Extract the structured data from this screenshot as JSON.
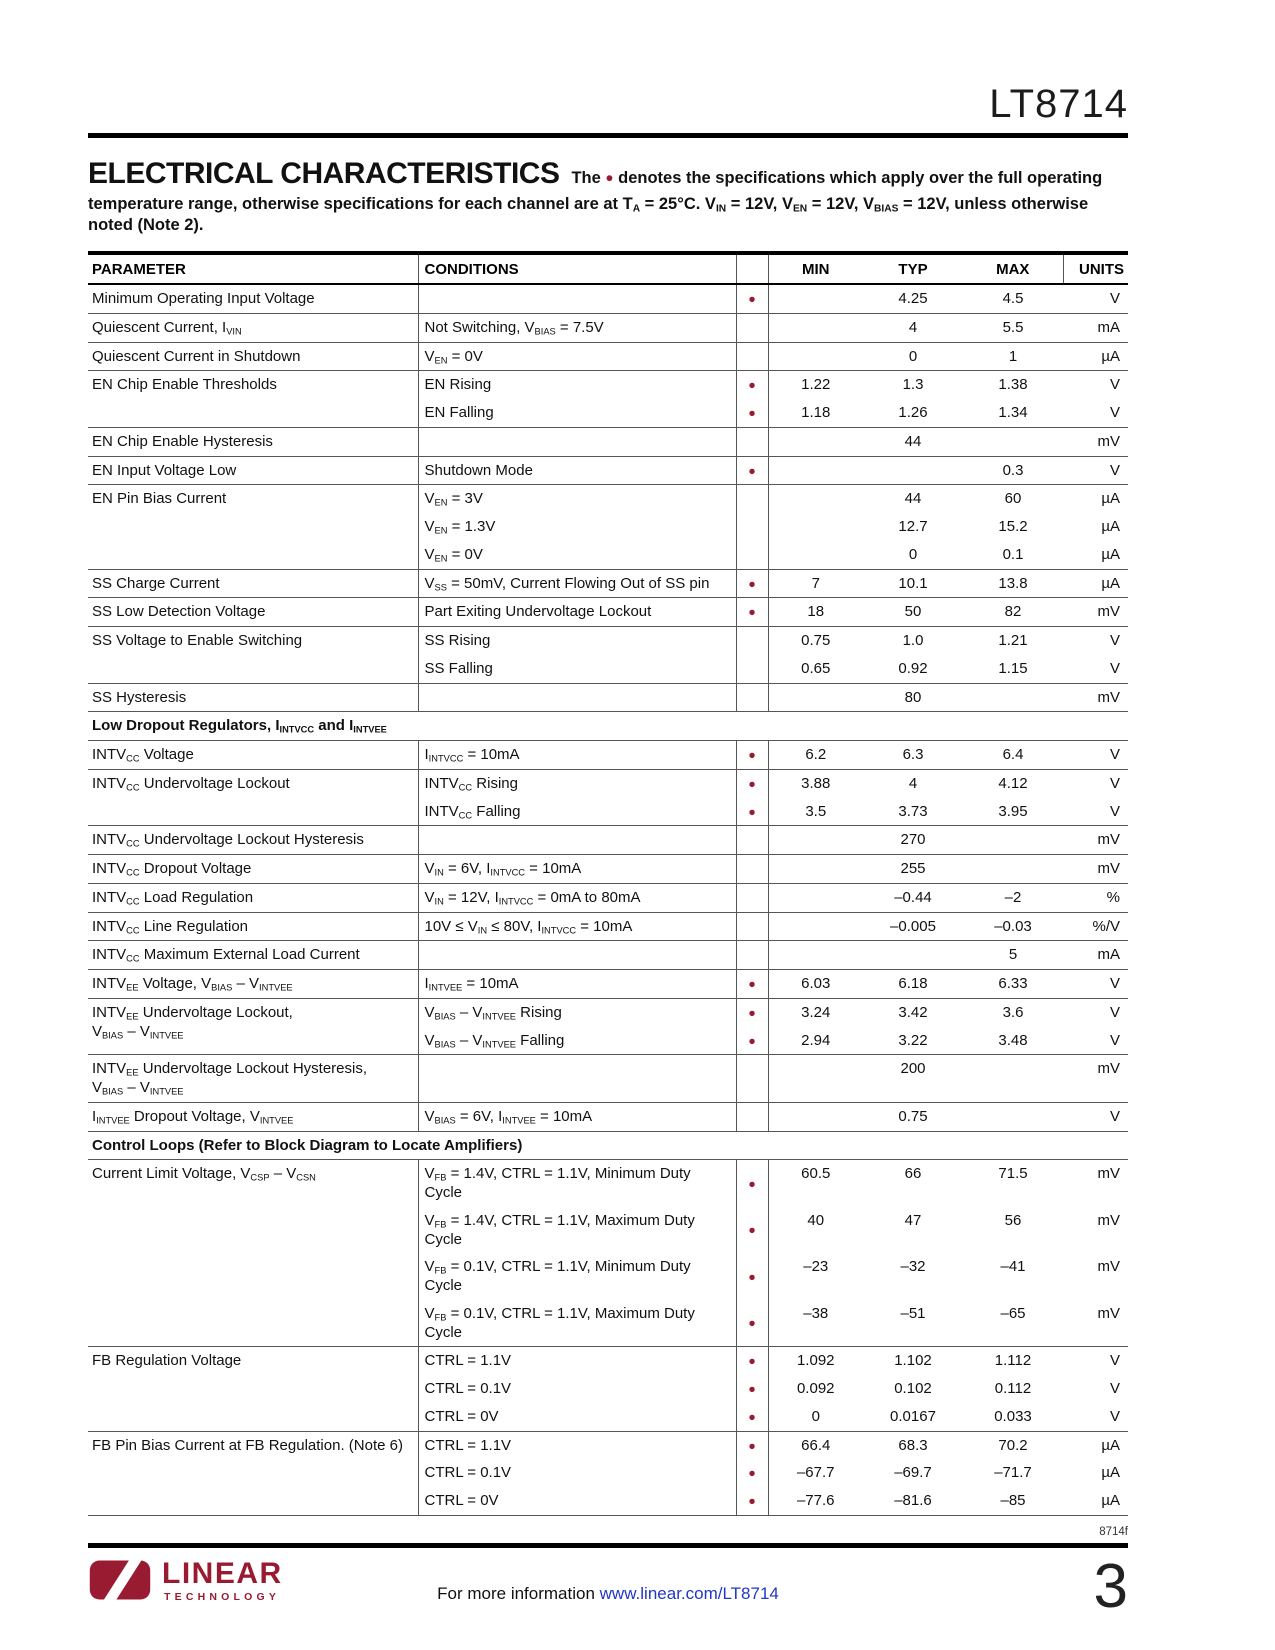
{
  "colors": {
    "accent": "#991B31",
    "link": "#2236C7"
  },
  "header": {
    "part_number": "LT8714"
  },
  "intro": {
    "title": "ELECTRICAL CHARACTERISTICS",
    "text": "The ● denotes the specifications which apply over the full operating temperature range, otherwise specifications for each channel are at T_{A} = 25°C. V_{IN} = 12V, V_{EN} = 12V, V_{BIAS} = 12V, unless otherwise noted (Note 2)."
  },
  "table": {
    "headers": [
      "PARAMETER",
      "CONDITIONS",
      "",
      "MIN",
      "TYP",
      "MAX",
      "UNITS"
    ],
    "groups": [
      {
        "param": "Minimum Operating Input Voltage",
        "rows": [
          {
            "cond": "",
            "dot": true,
            "min": "",
            "typ": "4.25",
            "max": "4.5",
            "units": "V"
          }
        ]
      },
      {
        "param": "Quiescent Current, I_{VIN}",
        "rows": [
          {
            "cond": "Not Switching, V_{BIAS} = 7.5V",
            "dot": false,
            "min": "",
            "typ": "4",
            "max": "5.5",
            "units": "mA"
          }
        ]
      },
      {
        "param": "Quiescent Current in Shutdown",
        "rows": [
          {
            "cond": "V_{EN} = 0V",
            "dot": false,
            "min": "",
            "typ": "0",
            "max": "1",
            "units": "µA"
          }
        ]
      },
      {
        "param": "EN Chip Enable Thresholds",
        "rows": [
          {
            "cond": "EN Rising",
            "dot": true,
            "min": "1.22",
            "typ": "1.3",
            "max": "1.38",
            "units": "V"
          },
          {
            "cond": "EN Falling",
            "dot": true,
            "min": "1.18",
            "typ": "1.26",
            "max": "1.34",
            "units": "V"
          }
        ]
      },
      {
        "param": "EN Chip Enable Hysteresis",
        "rows": [
          {
            "cond": "",
            "dot": false,
            "min": "",
            "typ": "44",
            "max": "",
            "units": "mV"
          }
        ]
      },
      {
        "param": "EN Input Voltage Low",
        "rows": [
          {
            "cond": "Shutdown Mode",
            "dot": true,
            "min": "",
            "typ": "",
            "max": "0.3",
            "units": "V"
          }
        ]
      },
      {
        "param": "EN Pin Bias Current",
        "rows": [
          {
            "cond": "V_{EN} = 3V",
            "dot": false,
            "min": "",
            "typ": "44",
            "max": "60",
            "units": "µA"
          },
          {
            "cond": "V_{EN} = 1.3V",
            "dot": false,
            "min": "",
            "typ": "12.7",
            "max": "15.2",
            "units": "µA"
          },
          {
            "cond": "V_{EN} = 0V",
            "dot": false,
            "min": "",
            "typ": "0",
            "max": "0.1",
            "units": "µA"
          }
        ]
      },
      {
        "param": "SS Charge Current",
        "rows": [
          {
            "cond": "V_{SS} = 50mV, Current Flowing Out of SS pin",
            "dot": true,
            "min": "7",
            "typ": "10.1",
            "max": "13.8",
            "units": "µA"
          }
        ]
      },
      {
        "param": "SS Low Detection Voltage",
        "rows": [
          {
            "cond": "Part Exiting Undervoltage Lockout",
            "dot": true,
            "min": "18",
            "typ": "50",
            "max": "82",
            "units": "mV"
          }
        ]
      },
      {
        "param": "SS Voltage to Enable Switching",
        "rows": [
          {
            "cond": "SS Rising",
            "dot": false,
            "min": "0.75",
            "typ": "1.0",
            "max": "1.21",
            "units": "V"
          },
          {
            "cond": "SS Falling",
            "dot": false,
            "min": "0.65",
            "typ": "0.92",
            "max": "1.15",
            "units": "V"
          }
        ]
      },
      {
        "param": "SS Hysteresis",
        "rows": [
          {
            "cond": "",
            "dot": false,
            "min": "",
            "typ": "80",
            "max": "",
            "units": "mV"
          }
        ]
      },
      {
        "section": "Low Dropout Regulators, I_{INTVCC} and I_{INTVEE}"
      },
      {
        "param": "INTV_{CC} Voltage",
        "rows": [
          {
            "cond": "I_{INTVCC} = 10mA",
            "dot": true,
            "min": "6.2",
            "typ": "6.3",
            "max": "6.4",
            "units": "V"
          }
        ]
      },
      {
        "param": "INTV_{CC} Undervoltage Lockout",
        "rows": [
          {
            "cond": "INTV_{CC} Rising",
            "dot": true,
            "min": "3.88",
            "typ": "4",
            "max": "4.12",
            "units": "V"
          },
          {
            "cond": "INTV_{CC} Falling",
            "dot": true,
            "min": "3.5",
            "typ": "3.73",
            "max": "3.95",
            "units": "V"
          }
        ]
      },
      {
        "param": "INTV_{CC} Undervoltage Lockout Hysteresis",
        "rows": [
          {
            "cond": "",
            "dot": false,
            "min": "",
            "typ": "270",
            "max": "",
            "units": "mV"
          }
        ]
      },
      {
        "param": "INTV_{CC} Dropout Voltage",
        "rows": [
          {
            "cond": "V_{IN} = 6V, I_{INTVCC} = 10mA",
            "dot": false,
            "min": "",
            "typ": "255",
            "max": "",
            "units": "mV"
          }
        ]
      },
      {
        "param": "INTV_{CC} Load Regulation",
        "rows": [
          {
            "cond": "V_{IN} = 12V, I_{INTVCC} = 0mA to 80mA",
            "dot": false,
            "min": "",
            "typ": "–0.44",
            "max": "–2",
            "units": "%"
          }
        ]
      },
      {
        "param": "INTV_{CC} Line Regulation",
        "rows": [
          {
            "cond": "10V ≤ V_{IN} ≤ 80V, I_{INTVCC} = 10mA",
            "dot": false,
            "min": "",
            "typ": "–0.005",
            "max": "–0.03",
            "units": "%/V"
          }
        ]
      },
      {
        "param": "INTV_{CC} Maximum External Load Current",
        "rows": [
          {
            "cond": "",
            "dot": false,
            "min": "",
            "typ": "",
            "max": "5",
            "units": "mA"
          }
        ]
      },
      {
        "param": "INTV_{EE} Voltage, V_{BIAS} – V_{INTVEE}",
        "rows": [
          {
            "cond": "I_{INTVEE} = 10mA",
            "dot": true,
            "min": "6.03",
            "typ": "6.18",
            "max": "6.33",
            "units": "V"
          }
        ]
      },
      {
        "param": "INTV_{EE} Undervoltage Lockout,\nV_{BIAS} – V_{INTVEE}",
        "rows": [
          {
            "cond": "V_{BIAS} – V_{INTVEE} Rising",
            "dot": true,
            "min": "3.24",
            "typ": "3.42",
            "max": "3.6",
            "units": "V"
          },
          {
            "cond": "V_{BIAS} – V_{INTVEE} Falling",
            "dot": true,
            "min": "2.94",
            "typ": "3.22",
            "max": "3.48",
            "units": "V"
          }
        ]
      },
      {
        "param": "INTV_{EE} Undervoltage Lockout Hysteresis,\nV_{BIAS} – V_{INTVEE}",
        "rows": [
          {
            "cond": "",
            "dot": false,
            "min": "",
            "typ": "200",
            "max": "",
            "units": "mV"
          }
        ]
      },
      {
        "param": "I_{INTVEE} Dropout Voltage, V_{INTVEE}",
        "rows": [
          {
            "cond": "V_{BIAS} = 6V, I_{INTVEE} = 10mA",
            "dot": false,
            "min": "",
            "typ": "0.75",
            "max": "",
            "units": "V"
          }
        ]
      },
      {
        "section": "Control Loops (Refer to Block Diagram to Locate Amplifiers)"
      },
      {
        "param": "Current Limit Voltage, V_{CSP} – V_{CSN}",
        "rows": [
          {
            "cond": "V_{FB} = 1.4V, CTRL = 1.1V, Minimum Duty Cycle",
            "dot": true,
            "min": "60.5",
            "typ": "66",
            "max": "71.5",
            "units": "mV"
          },
          {
            "cond": "V_{FB} = 1.4V, CTRL = 1.1V, Maximum Duty Cycle",
            "dot": true,
            "min": "40",
            "typ": "47",
            "max": "56",
            "units": "mV"
          },
          {
            "cond": "V_{FB} = 0.1V, CTRL = 1.1V, Minimum Duty Cycle",
            "dot": true,
            "min": "–23",
            "typ": "–32",
            "max": "–41",
            "units": "mV"
          },
          {
            "cond": "V_{FB} = 0.1V, CTRL = 1.1V, Maximum Duty Cycle",
            "dot": true,
            "min": "–38",
            "typ": "–51",
            "max": "–65",
            "units": "mV"
          }
        ]
      },
      {
        "param": "FB Regulation Voltage",
        "rows": [
          {
            "cond": "CTRL = 1.1V",
            "dot": true,
            "min": "1.092",
            "typ": "1.102",
            "max": "1.112",
            "units": "V"
          },
          {
            "cond": "CTRL = 0.1V",
            "dot": true,
            "min": "0.092",
            "typ": "0.102",
            "max": "0.112",
            "units": "V"
          },
          {
            "cond": "CTRL = 0V",
            "dot": true,
            "min": "0",
            "typ": "0.0167",
            "max": "0.033",
            "units": "V"
          }
        ]
      },
      {
        "param": "FB Pin Bias Current at FB Regulation. (Note 6)",
        "rows": [
          {
            "cond": "CTRL = 1.1V",
            "dot": true,
            "min": "66.4",
            "typ": "68.3",
            "max": "70.2",
            "units": "µA"
          },
          {
            "cond": "CTRL = 0.1V",
            "dot": true,
            "min": "–67.7",
            "typ": "–69.7",
            "max": "–71.7",
            "units": "µA"
          },
          {
            "cond": "CTRL = 0V",
            "dot": true,
            "min": "–77.6",
            "typ": "–81.6",
            "max": "–85",
            "units": "µA"
          }
        ]
      }
    ]
  },
  "footer": {
    "doc_code": "8714f",
    "info_text": "For more information",
    "link": "www.linear.com/LT8714",
    "page_number": "3",
    "logo_line1": "LINEAR",
    "logo_line2": "TECHNOLOGY"
  }
}
